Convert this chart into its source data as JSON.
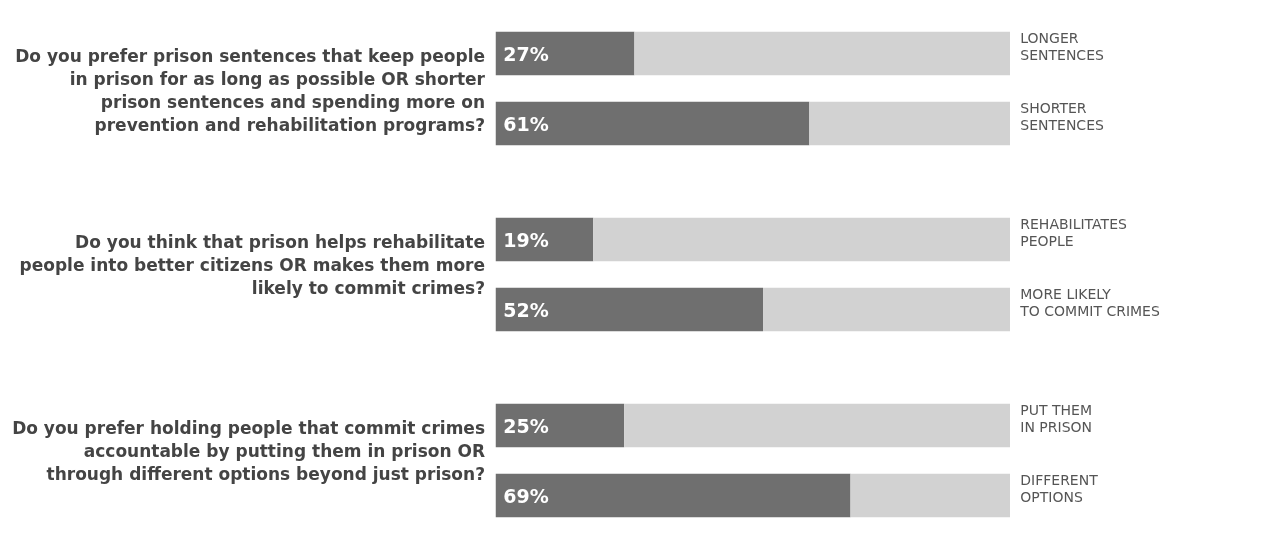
{
  "chart_data": [
    {
      "type": "bar",
      "orientation": "horizontal",
      "stacked": true,
      "title": "Do you prefer prison sentences that keep people in prison for as long as possible OR shorter prison sentences and spending more on prevention and rehabilitation programs?",
      "categories": [
        "LONGER\nSENTENCES",
        "SHORTER\nSENTENCES"
      ],
      "series": [
        {
          "color": "#6f6f6f",
          "values": [
            27,
            61
          ],
          "value_labels": [
            "27%",
            "61%"
          ]
        },
        {
          "color": "#d2d2d2",
          "values": [
            73,
            39
          ]
        }
      ],
      "tick_labels": false,
      "grid": false
    },
    {
      "type": "bar",
      "orientation": "horizontal",
      "stacked": true,
      "title": "Do you think that prison helps rehabilitate people into better citizens OR makes them more likely to commit crimes?",
      "categories": [
        "REHABILITATES\nPEOPLE",
        "MORE LIKELY\nTO COMMIT CRIMES"
      ],
      "series": [
        {
          "color": "#6f6f6f",
          "values": [
            19,
            52
          ],
          "value_labels": [
            "19%",
            "52%"
          ]
        },
        {
          "color": "#d2d2d2",
          "values": [
            81,
            48
          ]
        }
      ],
      "tick_labels": false,
      "grid": false
    },
    {
      "type": "bar",
      "orientation": "horizontal",
      "stacked": true,
      "title": "Do you prefer holding people that commit crimes accountable by putting them in prison OR through different options beyond just prison?",
      "categories": [
        "PUT THEM\nIN PRISON",
        "DIFFERENT\nOPTIONS"
      ],
      "series": [
        {
          "color": "#6f6f6f",
          "values": [
            25,
            69
          ],
          "value_labels": [
            "25%",
            "69%"
          ]
        },
        {
          "color": "#d2d2d2",
          "values": [
            75,
            31
          ]
        }
      ],
      "tick_labels": false,
      "grid": false
    }
  ]
}
